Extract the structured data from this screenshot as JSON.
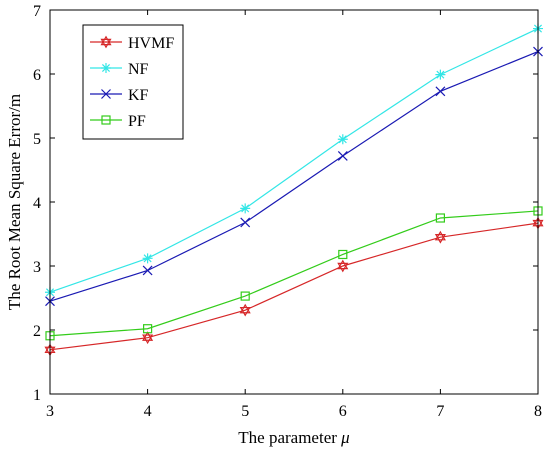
{
  "chart_data": {
    "type": "line",
    "title": "",
    "xlabel": "The parameter ",
    "xlabel_symbol": "μ",
    "ylabel": "The Root Mean Square Error/m",
    "x": [
      3,
      4,
      5,
      6,
      7,
      8
    ],
    "xlim": [
      3,
      8
    ],
    "ylim": [
      1,
      7
    ],
    "xticks": [
      "3",
      "4",
      "5",
      "6",
      "7",
      "8"
    ],
    "yticks": [
      "1",
      "2",
      "3",
      "4",
      "5",
      "6",
      "7"
    ],
    "grid": false,
    "legend": "top-left",
    "series": [
      {
        "name": "HVMF",
        "color": "#d62728",
        "marker": "hexagram",
        "values": [
          1.69,
          1.88,
          2.31,
          3.0,
          3.45,
          3.67
        ]
      },
      {
        "name": "NF",
        "color": "#33e6e6",
        "marker": "asterisk",
        "values": [
          2.59,
          3.12,
          3.9,
          4.98,
          5.99,
          6.71
        ]
      },
      {
        "name": "KF",
        "color": "#1a1ab3",
        "marker": "x",
        "values": [
          2.45,
          2.93,
          3.68,
          4.72,
          5.73,
          6.35
        ]
      },
      {
        "name": "PF",
        "color": "#33cc1a",
        "marker": "square",
        "values": [
          1.91,
          2.02,
          2.53,
          3.18,
          3.75,
          3.86
        ]
      }
    ]
  }
}
